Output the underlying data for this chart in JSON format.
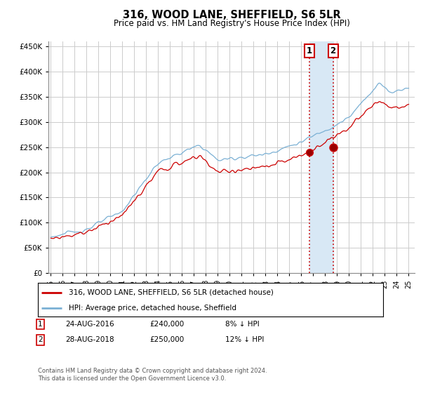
{
  "title": "316, WOOD LANE, SHEFFIELD, S6 5LR",
  "subtitle": "Price paid vs. HM Land Registry's House Price Index (HPI)",
  "ytick_values": [
    0,
    50000,
    100000,
    150000,
    200000,
    250000,
    300000,
    350000,
    400000,
    450000
  ],
  "ylim": [
    0,
    460000
  ],
  "xlim_start": 1994.8,
  "xlim_end": 2025.5,
  "line1_color": "#cc0000",
  "line2_color": "#7ab0d4",
  "purchase1_date": 2016.65,
  "purchase1_price": 240000,
  "purchase2_date": 2018.65,
  "purchase2_price": 250000,
  "legend_label1": "316, WOOD LANE, SHEFFIELD, S6 5LR (detached house)",
  "legend_label2": "HPI: Average price, detached house, Sheffield",
  "footer": "Contains HM Land Registry data © Crown copyright and database right 2024.\nThis data is licensed under the Open Government Licence v3.0.",
  "vline1_color": "#cc0000",
  "vline2_color": "#cc0000",
  "vline_style": "dotted",
  "highlight_color": "#d8e8f5",
  "grid_color": "#cccccc",
  "bg_color": "#ffffff"
}
